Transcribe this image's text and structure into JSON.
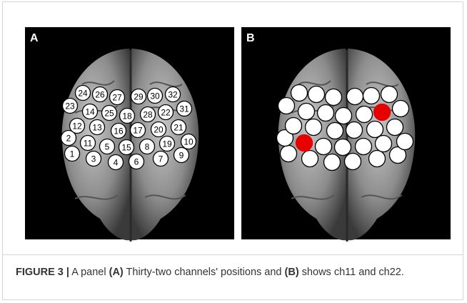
{
  "panels": [
    {
      "label": "A"
    },
    {
      "label": "B"
    }
  ],
  "channels": [
    1,
    2,
    3,
    4,
    5,
    6,
    7,
    8,
    9,
    10,
    11,
    12,
    13,
    14,
    15,
    16,
    17,
    18,
    19,
    20,
    21,
    22,
    23,
    24,
    25,
    26,
    27,
    28,
    29,
    30,
    31,
    32
  ],
  "highlighted_channels": [
    11,
    22
  ],
  "highlight_color": "#e60000",
  "caption": {
    "label": "FIGURE 3 |",
    "parts": [
      " A panel ",
      "(A)",
      " Thirty-two channels' positions and ",
      "(B)",
      " shows ch11 and ch22."
    ]
  }
}
